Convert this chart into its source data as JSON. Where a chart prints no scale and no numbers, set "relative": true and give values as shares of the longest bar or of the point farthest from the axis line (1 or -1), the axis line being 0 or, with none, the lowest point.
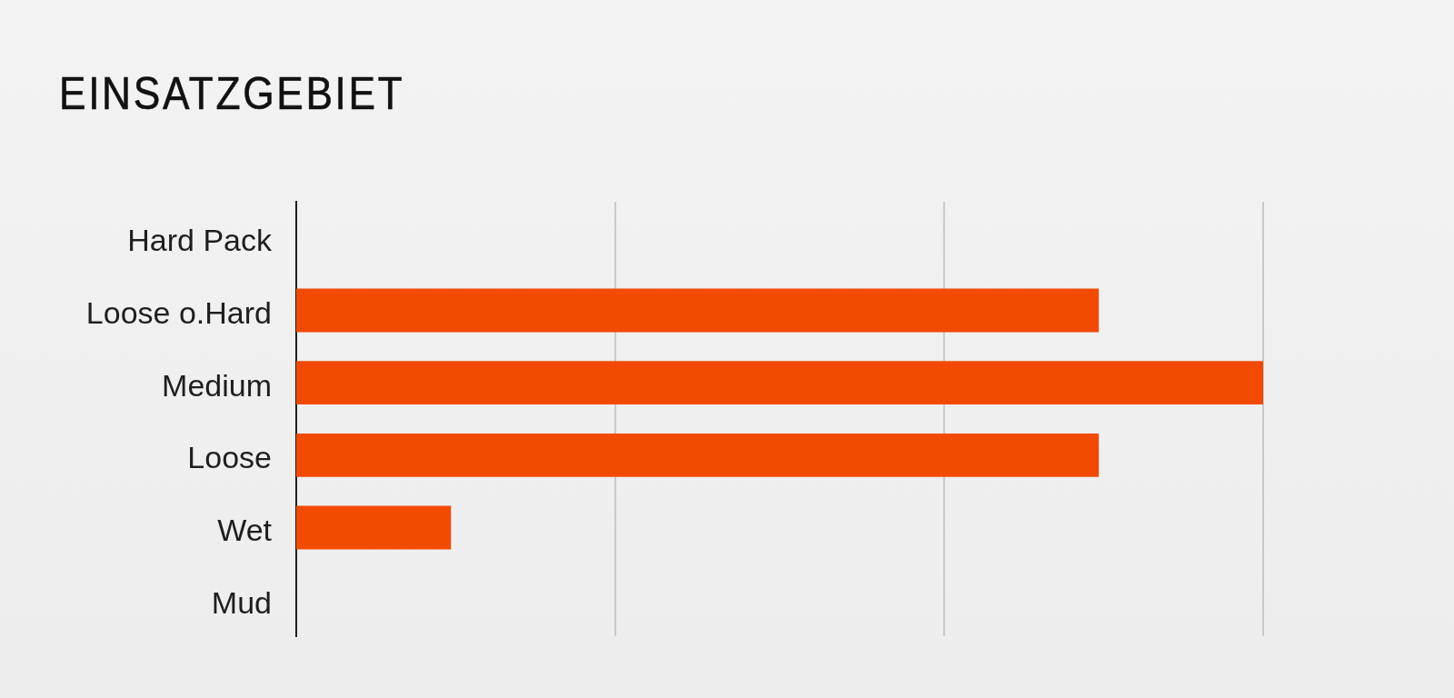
{
  "chart_data": {
    "type": "bar",
    "orientation": "horizontal",
    "relative": true,
    "title": "EINSATZGEBIET",
    "categories": [
      "Hard Pack",
      "Loose o.Hard",
      "Medium",
      "Loose",
      "Wet",
      "Mud"
    ],
    "values": [
      0,
      0.83,
      1,
      0.83,
      0.16,
      0
    ],
    "color": "#f24a00",
    "ref_lines": [
      {
        "axis": "x",
        "value": 0.33,
        "color": "#c9c9c9"
      },
      {
        "axis": "x",
        "value": 0.67,
        "color": "#c9c9c9"
      },
      {
        "axis": "x",
        "value": 1,
        "color": "#c9c9c9"
      }
    ],
    "tick_labels": "y"
  }
}
